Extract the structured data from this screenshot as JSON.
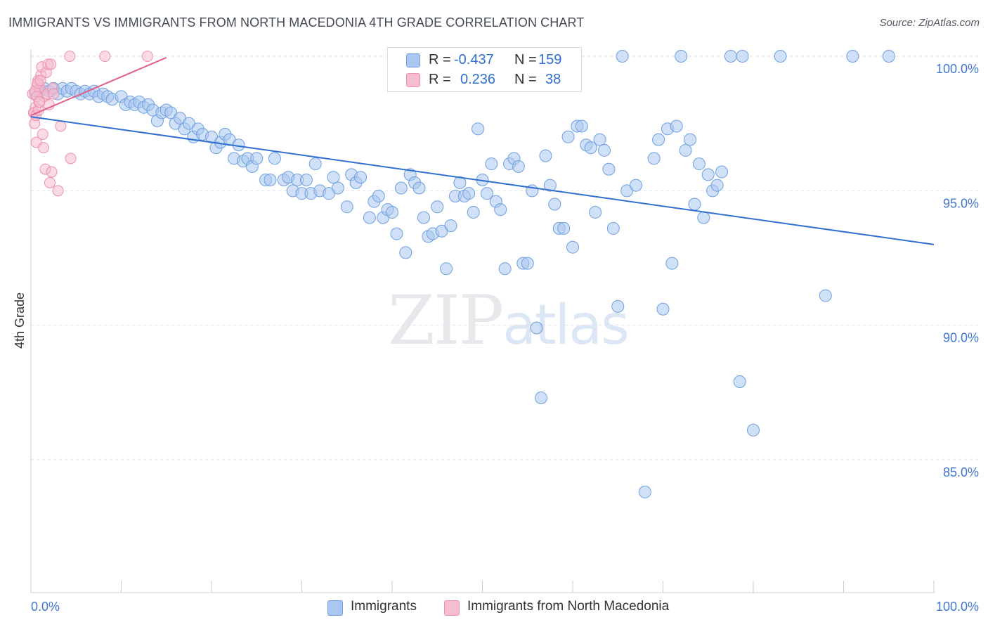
{
  "header": {
    "title": "IMMIGRANTS VS IMMIGRANTS FROM NORTH MACEDONIA 4TH GRADE CORRELATION CHART",
    "source": "Source: ZipAtlas.com"
  },
  "watermark": {
    "zip": "ZIP",
    "atlas": "atlas"
  },
  "legend": {
    "rows": [
      {
        "r_label": "R =",
        "r_value": "-0.437",
        "n_label": "N =",
        "n_value": "159"
      },
      {
        "r_label": "R =",
        "r_value": "0.236",
        "n_label": "N =",
        "n_value": "38"
      }
    ]
  },
  "bottom_legend": {
    "series1": "Immigrants",
    "series2": "Immigrants from North Macedonia"
  },
  "colors": {
    "blue_fill": "#a9c7ef",
    "blue_stroke": "#6e9fe0",
    "blue_line": "#2f6fd0",
    "pink_fill": "#f6bdd0",
    "pink_stroke": "#ec8fb0",
    "pink_line": "#e0608a",
    "axis_text": "#3f76d0",
    "grid": "#dfe3ea"
  },
  "chart_data": {
    "type": "scatter",
    "title": "IMMIGRANTS VS IMMIGRANTS FROM NORTH MACEDONIA 4TH GRADE CORRELATION CHART",
    "xlabel": "",
    "ylabel": "4th Grade",
    "xlim": [
      0,
      100
    ],
    "ylim": [
      80.5,
      100.3
    ],
    "x_tick_labels": [
      "0.0%",
      "100.0%"
    ],
    "y_ticks": [
      85,
      90,
      95,
      100
    ],
    "y_tick_labels": [
      "85.0%",
      "90.0%",
      "95.0%",
      "100.0%"
    ],
    "series": [
      {
        "name": "Immigrants",
        "color": "#a9c7ef",
        "trendline": {
          "x": [
            0,
            100
          ],
          "y": [
            97.75,
            93.0
          ]
        },
        "points": [
          [
            0.5,
            98.6
          ],
          [
            1.0,
            98.7
          ],
          [
            1.5,
            98.8
          ],
          [
            2.0,
            98.7
          ],
          [
            2.5,
            98.8
          ],
          [
            3.0,
            98.6
          ],
          [
            3.5,
            98.8
          ],
          [
            4.0,
            98.7
          ],
          [
            4.5,
            98.8
          ],
          [
            5.0,
            98.7
          ],
          [
            5.5,
            98.6
          ],
          [
            6.0,
            98.7
          ],
          [
            6.5,
            98.6
          ],
          [
            7.0,
            98.7
          ],
          [
            7.5,
            98.5
          ],
          [
            8.0,
            98.6
          ],
          [
            8.5,
            98.5
          ],
          [
            9.0,
            98.4
          ],
          [
            10.0,
            98.5
          ],
          [
            10.5,
            98.2
          ],
          [
            11.0,
            98.3
          ],
          [
            11.5,
            98.2
          ],
          [
            12.0,
            98.3
          ],
          [
            12.5,
            98.1
          ],
          [
            13.0,
            98.2
          ],
          [
            13.5,
            98.0
          ],
          [
            14.0,
            97.6
          ],
          [
            14.5,
            97.9
          ],
          [
            15.0,
            98.0
          ],
          [
            15.5,
            97.9
          ],
          [
            16.0,
            97.5
          ],
          [
            16.5,
            97.7
          ],
          [
            17.0,
            97.3
          ],
          [
            17.5,
            97.5
          ],
          [
            18.0,
            97.0
          ],
          [
            18.5,
            97.3
          ],
          [
            19.0,
            97.1
          ],
          [
            20.0,
            97.0
          ],
          [
            20.5,
            96.6
          ],
          [
            21.0,
            96.8
          ],
          [
            21.5,
            97.1
          ],
          [
            22.0,
            96.9
          ],
          [
            22.5,
            96.2
          ],
          [
            23.0,
            96.7
          ],
          [
            23.5,
            96.1
          ],
          [
            24.0,
            96.2
          ],
          [
            24.5,
            95.9
          ],
          [
            25.0,
            96.2
          ],
          [
            26.0,
            95.4
          ],
          [
            26.5,
            95.4
          ],
          [
            27.0,
            96.2
          ],
          [
            28.0,
            95.4
          ],
          [
            28.5,
            95.5
          ],
          [
            29.0,
            95.0
          ],
          [
            29.5,
            95.4
          ],
          [
            30.0,
            94.9
          ],
          [
            30.5,
            95.4
          ],
          [
            31.0,
            94.9
          ],
          [
            31.5,
            96.0
          ],
          [
            32.0,
            95.0
          ],
          [
            33.0,
            94.9
          ],
          [
            33.5,
            95.5
          ],
          [
            34.0,
            95.1
          ],
          [
            35.0,
            94.4
          ],
          [
            35.5,
            95.6
          ],
          [
            36.0,
            95.3
          ],
          [
            36.5,
            95.5
          ],
          [
            37.5,
            94.0
          ],
          [
            38.0,
            94.6
          ],
          [
            38.5,
            94.8
          ],
          [
            39.0,
            94.0
          ],
          [
            39.5,
            94.3
          ],
          [
            40.0,
            94.2
          ],
          [
            40.5,
            93.4
          ],
          [
            41.0,
            95.1
          ],
          [
            41.5,
            92.7
          ],
          [
            42.0,
            95.6
          ],
          [
            42.5,
            95.3
          ],
          [
            43.0,
            95.1
          ],
          [
            43.5,
            94.0
          ],
          [
            44.0,
            93.3
          ],
          [
            44.5,
            93.4
          ],
          [
            45.0,
            94.4
          ],
          [
            45.5,
            93.5
          ],
          [
            46.0,
            92.1
          ],
          [
            46.5,
            93.7
          ],
          [
            47.0,
            94.8
          ],
          [
            47.5,
            95.3
          ],
          [
            48.0,
            94.8
          ],
          [
            48.5,
            94.9
          ],
          [
            49.0,
            94.2
          ],
          [
            49.5,
            97.3
          ],
          [
            50.0,
            95.4
          ],
          [
            50.5,
            94.9
          ],
          [
            51.0,
            96.0
          ],
          [
            51.5,
            94.6
          ],
          [
            52.0,
            94.3
          ],
          [
            52.5,
            92.1
          ],
          [
            53.0,
            96.0
          ],
          [
            53.5,
            96.2
          ],
          [
            54.0,
            95.9
          ],
          [
            54.5,
            92.3
          ],
          [
            55.0,
            92.3
          ],
          [
            55.5,
            95.0
          ],
          [
            56.0,
            89.9
          ],
          [
            56.5,
            87.3
          ],
          [
            57.0,
            96.3
          ],
          [
            57.5,
            95.2
          ],
          [
            58.0,
            94.5
          ],
          [
            58.5,
            93.6
          ],
          [
            59.0,
            93.6
          ],
          [
            59.5,
            97.0
          ],
          [
            60.0,
            92.9
          ],
          [
            60.5,
            97.4
          ],
          [
            61.0,
            97.4
          ],
          [
            61.5,
            96.7
          ],
          [
            62.0,
            96.6
          ],
          [
            62.5,
            94.2
          ],
          [
            63.0,
            96.9
          ],
          [
            63.5,
            96.5
          ],
          [
            64.0,
            95.8
          ],
          [
            64.5,
            93.6
          ],
          [
            65.0,
            90.7
          ],
          [
            65.5,
            100.0
          ],
          [
            66.0,
            95.0
          ],
          [
            67.0,
            95.2
          ],
          [
            68.0,
            83.8
          ],
          [
            69.0,
            96.2
          ],
          [
            69.5,
            96.9
          ],
          [
            70.0,
            90.6
          ],
          [
            70.5,
            97.3
          ],
          [
            71.0,
            92.3
          ],
          [
            71.5,
            97.4
          ],
          [
            72.0,
            100.0
          ],
          [
            72.5,
            96.5
          ],
          [
            73.0,
            96.9
          ],
          [
            73.5,
            94.5
          ],
          [
            74.0,
            96.0
          ],
          [
            74.5,
            94.0
          ],
          [
            75.0,
            95.6
          ],
          [
            75.5,
            95.0
          ],
          [
            76.0,
            95.2
          ],
          [
            76.5,
            95.7
          ],
          [
            77.5,
            100.0
          ],
          [
            78.5,
            87.9
          ],
          [
            78.8,
            100.0
          ],
          [
            80.0,
            86.1
          ],
          [
            83.0,
            100.0
          ],
          [
            88.0,
            91.1
          ],
          [
            91.0,
            100.0
          ],
          [
            95.0,
            100.0
          ]
        ]
      },
      {
        "name": "Immigrants from North Macedonia",
        "color": "#f6bdd0",
        "trendline": {
          "x": [
            0,
            15
          ],
          "y": [
            97.8,
            99.95
          ]
        },
        "points": [
          [
            0.2,
            98.6
          ],
          [
            0.3,
            97.9
          ],
          [
            0.4,
            97.5
          ],
          [
            0.5,
            98.1
          ],
          [
            0.6,
            96.8
          ],
          [
            0.7,
            98.9
          ],
          [
            0.8,
            99.1
          ],
          [
            0.9,
            98.3
          ],
          [
            1.0,
            98.8
          ],
          [
            1.1,
            99.3
          ],
          [
            1.2,
            99.6
          ],
          [
            1.3,
            97.1
          ],
          [
            1.4,
            96.6
          ],
          [
            1.5,
            98.5
          ],
          [
            1.6,
            95.8
          ],
          [
            1.7,
            99.4
          ],
          [
            1.8,
            98.6
          ],
          [
            1.9,
            99.7
          ],
          [
            2.0,
            98.2
          ],
          [
            2.1,
            95.3
          ],
          [
            2.2,
            99.7
          ],
          [
            2.3,
            95.7
          ],
          [
            2.4,
            98.8
          ],
          [
            2.5,
            98.6
          ],
          [
            3.0,
            95.0
          ],
          [
            3.3,
            97.4
          ],
          [
            4.4,
            96.2
          ],
          [
            4.3,
            100.0
          ],
          [
            8.2,
            100.0
          ],
          [
            12.9,
            100.0
          ],
          [
            0.35,
            97.9
          ],
          [
            0.45,
            98.7
          ],
          [
            0.55,
            97.8
          ],
          [
            0.65,
            98.5
          ],
          [
            0.75,
            99.0
          ],
          [
            0.85,
            98.0
          ],
          [
            0.95,
            98.3
          ],
          [
            1.05,
            99.1
          ]
        ]
      }
    ]
  }
}
